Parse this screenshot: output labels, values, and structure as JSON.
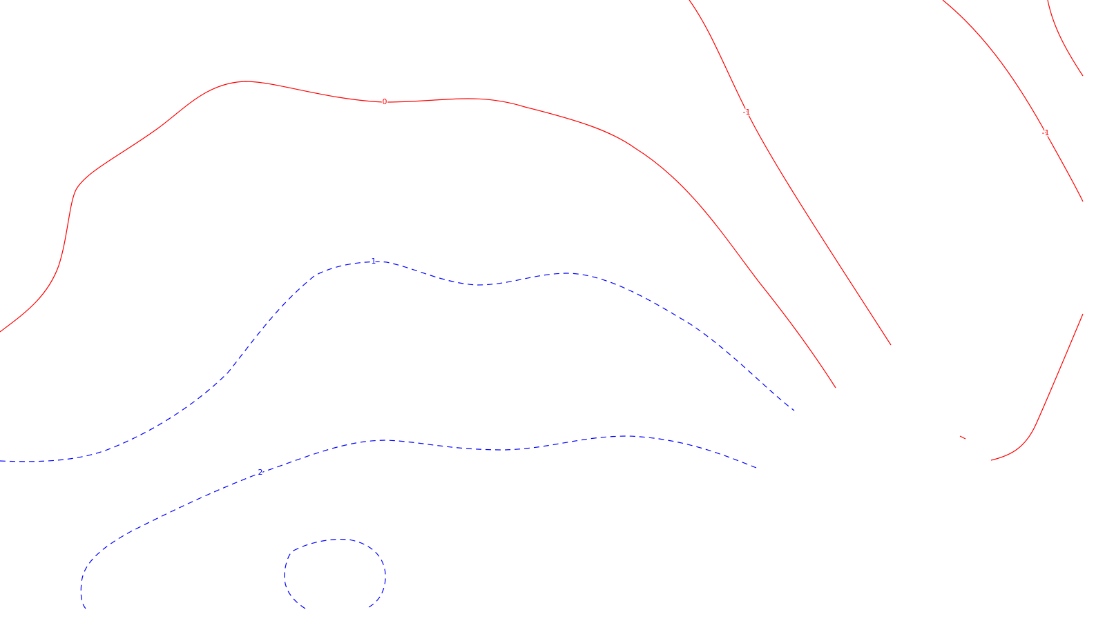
{
  "map": {
    "type": "contour",
    "colors": {
      "non_positive": "#ff0000",
      "positive": "#0000ff",
      "background": "#ffffff"
    },
    "line_styles": {
      "non_positive": "solid",
      "positive": "dashed"
    },
    "contour_labels": [
      {
        "id": "label-zero",
        "text": "0",
        "level": 0
      },
      {
        "id": "label-neg1-a",
        "text": "-1",
        "level": -1
      },
      {
        "id": "label-neg1-b",
        "text": "-1",
        "level": -1
      },
      {
        "id": "label-pos1",
        "text": "1",
        "level": 1
      },
      {
        "id": "label-pos2",
        "text": "2",
        "level": 2
      }
    ]
  }
}
